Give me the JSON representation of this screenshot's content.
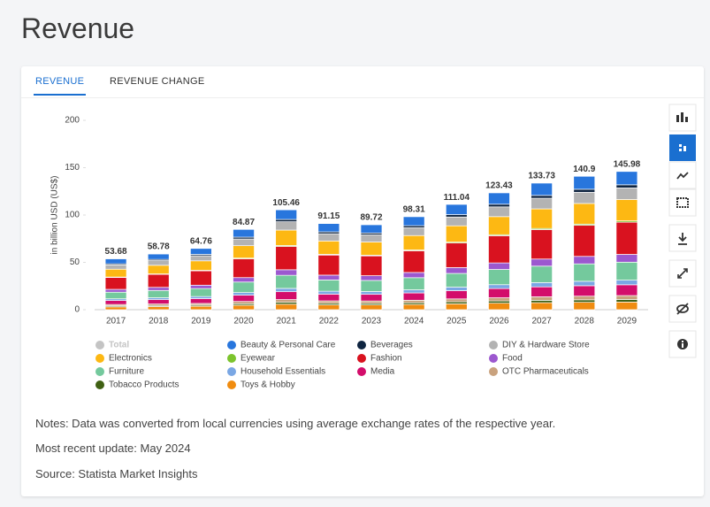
{
  "header": {
    "title": "Revenue"
  },
  "tabs": [
    "REVENUE",
    "REVENUE CHANGE"
  ],
  "chart_data": {
    "type": "bar",
    "stacked": true,
    "ylabel": "in billion USD (US$)",
    "categories": [
      "2017",
      "2018",
      "2019",
      "2020",
      "2021",
      "2022",
      "2023",
      "2024",
      "2025",
      "2026",
      "2027",
      "2028",
      "2029"
    ],
    "ylim": [
      0,
      200
    ],
    "yticks": [
      0,
      50,
      100,
      150,
      200
    ],
    "grid": false,
    "series": [
      {
        "name": "Total",
        "color": "#c4c4c4",
        "visible": false,
        "values": [
          53.68,
          58.78,
          64.76,
          84.87,
          105.46,
          91.15,
          89.72,
          98.31,
          111.04,
          123.43,
          133.73,
          140.9,
          145.98
        ]
      },
      {
        "name": "Beauty & Personal Care",
        "color": "#2876dd",
        "values": [
          5.2,
          5.7,
          6.3,
          8.2,
          10.2,
          8.8,
          8.7,
          9.5,
          10.8,
          12.0,
          13.0,
          13.7,
          14.1
        ]
      },
      {
        "name": "Beverages",
        "color": "#0f2541",
        "values": [
          1.2,
          1.3,
          1.4,
          1.9,
          2.4,
          2.0,
          2.0,
          2.2,
          2.5,
          2.8,
          3.0,
          3.2,
          3.3
        ]
      },
      {
        "name": "DIY & Hardware Store",
        "color": "#b3b3b3",
        "values": [
          4.5,
          4.9,
          5.4,
          7.1,
          8.8,
          7.6,
          7.5,
          8.2,
          9.3,
          10.3,
          11.2,
          11.8,
          12.2
        ]
      },
      {
        "name": "Electronics",
        "color": "#fdb813",
        "values": [
          8.3,
          9.1,
          10.0,
          13.1,
          16.3,
          14.1,
          13.9,
          15.2,
          17.2,
          19.1,
          20.7,
          21.8,
          22.6
        ]
      },
      {
        "name": "Eyewear",
        "color": "#7cc42d",
        "values": [
          0.5,
          0.5,
          0.6,
          0.8,
          1.0,
          0.8,
          0.8,
          0.9,
          1.0,
          1.1,
          1.2,
          1.3,
          1.4
        ]
      },
      {
        "name": "Fashion",
        "color": "#d9121f",
        "values": [
          12.5,
          13.7,
          15.1,
          19.8,
          24.6,
          21.2,
          20.9,
          22.9,
          25.9,
          28.7,
          31.1,
          32.8,
          34.0
        ]
      },
      {
        "name": "Food",
        "color": "#9c58cf",
        "values": [
          3.0,
          3.3,
          3.6,
          4.7,
          5.9,
          5.1,
          5.0,
          5.5,
          6.2,
          6.9,
          7.5,
          7.9,
          8.2
        ]
      },
      {
        "name": "Furniture",
        "color": "#74c99d",
        "values": [
          7.0,
          7.7,
          8.4,
          11.1,
          13.8,
          11.9,
          11.7,
          12.8,
          14.5,
          16.1,
          17.4,
          18.4,
          19.0
        ]
      },
      {
        "name": "Household Essentials",
        "color": "#7aa7e4",
        "values": [
          1.8,
          2.0,
          2.2,
          2.8,
          3.5,
          3.1,
          3.0,
          3.3,
          3.7,
          4.1,
          4.5,
          4.7,
          4.9
        ]
      },
      {
        "name": "Media",
        "color": "#d30d6b",
        "values": [
          4.2,
          4.6,
          5.1,
          6.6,
          8.3,
          7.1,
          7.0,
          7.7,
          8.7,
          9.7,
          10.5,
          11.0,
          11.4
        ]
      },
      {
        "name": "OTC Pharmaceuticals",
        "color": "#c9a27e",
        "values": [
          1.5,
          1.6,
          1.8,
          2.4,
          2.9,
          2.5,
          2.5,
          2.7,
          3.1,
          3.4,
          3.7,
          3.9,
          4.1
        ]
      },
      {
        "name": "Tobacco Products",
        "color": "#3f6012",
        "values": [
          1.0,
          1.1,
          1.2,
          1.6,
          2.0,
          1.7,
          1.7,
          1.8,
          2.1,
          2.3,
          2.5,
          2.6,
          2.7
        ]
      },
      {
        "name": "Toys & Hobby",
        "color": "#f08c10",
        "values": [
          2.98,
          3.3,
          3.6,
          4.7,
          5.8,
          5.1,
          5.0,
          5.5,
          6.2,
          6.9,
          7.4,
          7.8,
          8.1
        ]
      }
    ]
  },
  "notes": [
    "Notes: Data was converted from local currencies using average exchange rates of the respective year.",
    "Most recent update: May 2024",
    "Source: Statista Market Insights"
  ]
}
